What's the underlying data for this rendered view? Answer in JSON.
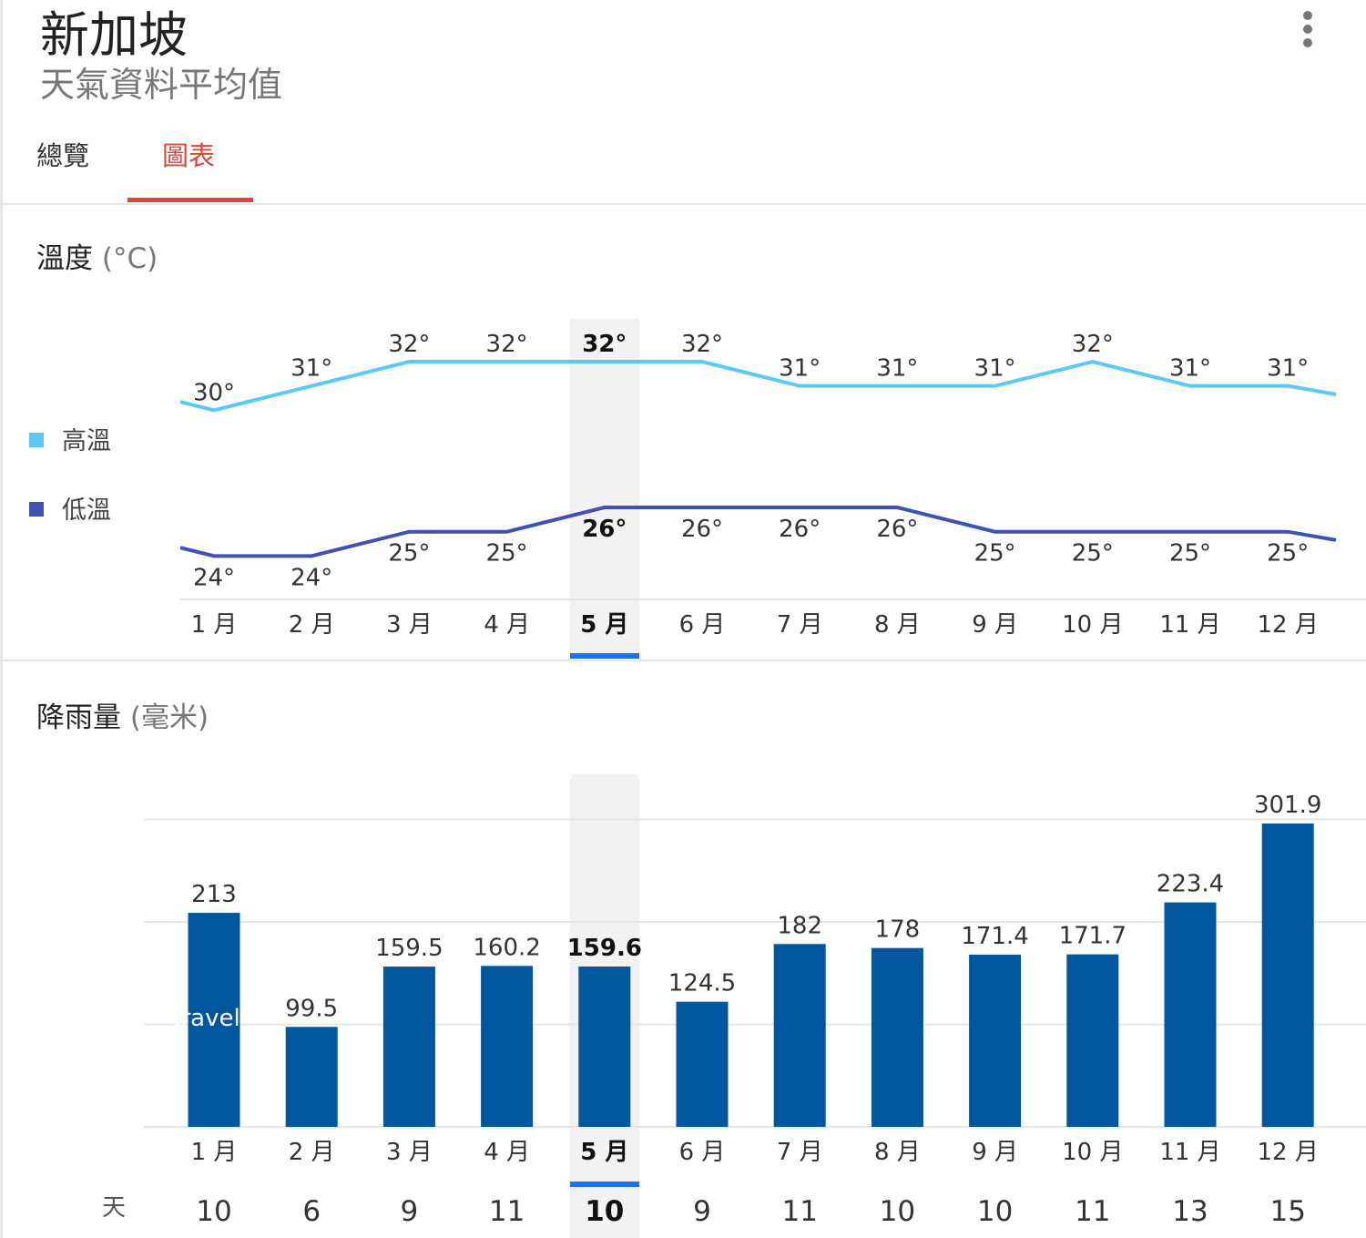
{
  "header": {
    "title": "新加坡",
    "subtitle": "天氣資料平均值"
  },
  "tabs": [
    {
      "label": "總覽",
      "active": false
    },
    {
      "label": "圖表",
      "active": true
    }
  ],
  "colors": {
    "accent": "#d9473a",
    "high": "#5bc8f5",
    "low": "#3f51b5",
    "bar": "#00579d",
    "selected": "#1a73e8"
  },
  "temperature": {
    "title": "溫度",
    "unit": "(°C)",
    "legend": [
      {
        "label": "高溫"
      },
      {
        "label": "低溫"
      }
    ]
  },
  "rainfall": {
    "title": "降雨量",
    "unit": "(毫米)",
    "days_label": "天",
    "watermark": "travel"
  },
  "selected_index": 4,
  "chart_data": [
    {
      "type": "line",
      "title": "溫度 (°C)",
      "categories": [
        "1 月",
        "2 月",
        "3 月",
        "4 月",
        "5 月",
        "6 月",
        "7 月",
        "8 月",
        "9 月",
        "10 月",
        "11 月",
        "12 月"
      ],
      "series": [
        {
          "name": "高溫",
          "values": [
            30,
            31,
            32,
            32,
            32,
            32,
            31,
            31,
            31,
            32,
            31,
            31
          ]
        },
        {
          "name": "低溫",
          "values": [
            24,
            24,
            25,
            25,
            26,
            26,
            26,
            26,
            25,
            25,
            25,
            25
          ]
        }
      ],
      "value_suffix": "°",
      "legend": "left"
    },
    {
      "type": "bar",
      "title": "降雨量 (毫米)",
      "categories": [
        "1 月",
        "2 月",
        "3 月",
        "4 月",
        "5 月",
        "6 月",
        "7 月",
        "8 月",
        "9 月",
        "10 月",
        "11 月",
        "12 月"
      ],
      "values": [
        213,
        99.5,
        159.5,
        160.2,
        159.6,
        124.5,
        182,
        178,
        171.4,
        171.7,
        223.4,
        301.9
      ],
      "value_labels": [
        "213",
        "99.5",
        "159.5",
        "160.2",
        "159.6",
        "124.5",
        "182",
        "178",
        "171.4",
        "171.7",
        "223.4",
        "301.9"
      ],
      "rain_days": [
        10,
        6,
        9,
        11,
        10,
        9,
        11,
        10,
        10,
        11,
        13,
        15
      ],
      "ylim": [
        0,
        306
      ],
      "grid": true
    }
  ]
}
